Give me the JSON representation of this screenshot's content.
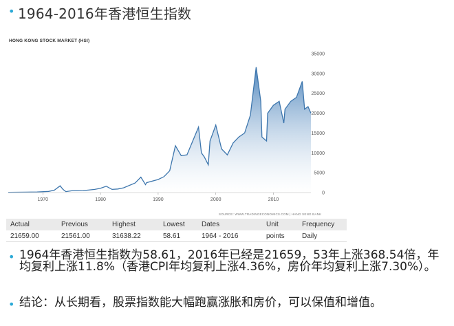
{
  "slide": {
    "title": "1964-2016年香港恒生指数",
    "bullets": [
      "1964年香港恒生指数为58.61，2016年已经是21659，53年上涨368.54倍，年均复利上涨11.8%（香港CPI年均复利上涨4.36%，房价年均复利上涨7.30%）。",
      "结论：从长期看，股票指数能大幅跑赢涨胀和房价，可以保值和增值。"
    ],
    "accent_color": "#2aa9d6"
  },
  "chart_data": {
    "type": "area",
    "title": "HONG KONG STOCK MARKET (HSI)",
    "source": "SOURCE: WWW.TRADINGECONOMICS.COM | HANG SENG BANK",
    "x_ticks": [
      1970,
      1980,
      1990,
      2000,
      2010
    ],
    "y_ticks": [
      0,
      5000,
      10000,
      15000,
      20000,
      25000,
      30000,
      35000
    ],
    "xlim": [
      1964,
      2016.5
    ],
    "ylim": [
      0,
      35000
    ],
    "line_color": "#3d76ad",
    "fill_top_color": "#4f86bd",
    "fill_bottom_color": "#ffffff",
    "series": [
      {
        "x": [
          1964,
          1967,
          1969,
          1971,
          1972,
          1973,
          1973.5,
          1974,
          1975,
          1977,
          1979,
          1980,
          1981,
          1982,
          1983,
          1984,
          1986,
          1987,
          1987.8,
          1988,
          1990,
          1991,
          1992,
          1993,
          1994,
          1995,
          1996,
          1997,
          1997.5,
          1998,
          1998.7,
          1999,
          2000,
          2001,
          2002,
          2003,
          2004,
          2005,
          2006,
          2007,
          2007.8,
          2008,
          2008.8,
          2009,
          2010,
          2011,
          2011.8,
          2012,
          2013,
          2014,
          2015,
          2015.4,
          2016,
          2016.5
        ],
        "y": [
          58.61,
          100,
          150,
          300,
          600,
          1700,
          800,
          250,
          450,
          500,
          800,
          1100,
          1600,
          800,
          900,
          1200,
          2400,
          3900,
          2000,
          2500,
          3300,
          4000,
          5500,
          11800,
          9300,
          9500,
          13000,
          16500,
          10000,
          9000,
          7000,
          13000,
          17000,
          11000,
          9500,
          12500,
          14000,
          15000,
          19500,
          31600,
          23000,
          14000,
          13000,
          20000,
          22000,
          23000,
          17500,
          21000,
          23000,
          24000,
          28000,
          21000,
          21659,
          20000
        ]
      }
    ],
    "table": {
      "headers": [
        "Actual",
        "Previous",
        "Highest",
        "Lowest",
        "Dates",
        "Unit",
        "Frequency"
      ],
      "row": [
        "21659.00",
        "21561.00",
        "31638.22",
        "58.61",
        "1964 - 2016",
        "points",
        "Daily"
      ]
    }
  }
}
